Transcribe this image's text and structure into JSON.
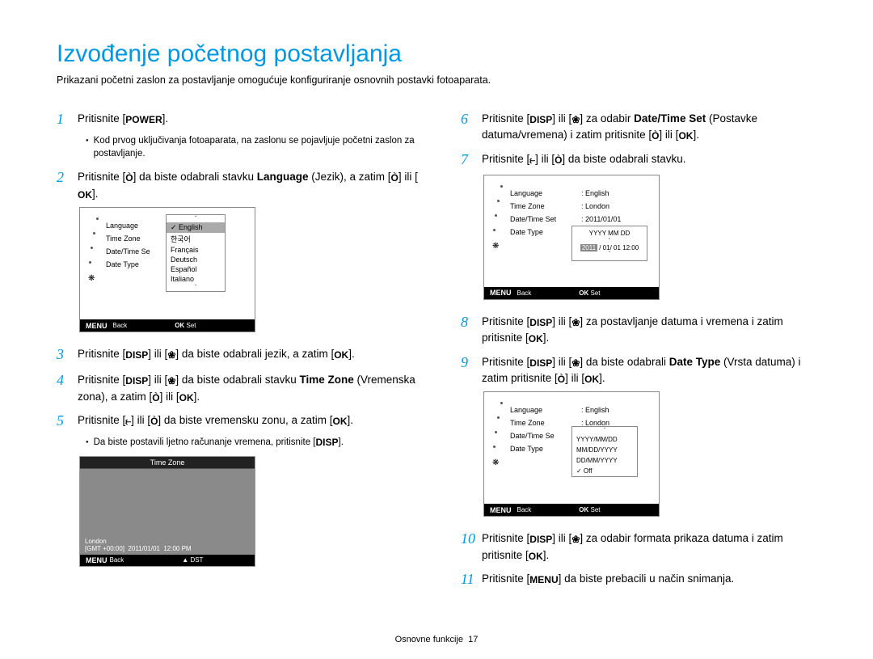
{
  "title": "Izvođenje početnog postavljanja",
  "subtitle": "Prikazani početni zaslon za postavljanje omogućuje konfiguriranje osnovnih postavki fotoaparata.",
  "icons": {
    "power": "POWER",
    "disp": "DISP",
    "ok": "OK",
    "menu": "MENU",
    "flower": "❀",
    "timer": "🕘",
    "flash": "⚡"
  },
  "steps_left": [
    {
      "n": "1",
      "t": [
        "Pritisnite [",
        "POWER",
        "]."
      ]
    },
    {
      "n": "2",
      "t": [
        "Pritisnite [",
        "timer",
        "] da biste odabrali stavku ",
        "Language",
        " (Jezik), a zatim [",
        "timer",
        "] ili [",
        "OK",
        "]."
      ]
    },
    {
      "n": "3",
      "t": [
        "Pritisnite [",
        "DISP",
        "] ili [",
        "flower",
        "] da biste odabrali jezik, a zatim [",
        "OK",
        "]."
      ]
    },
    {
      "n": "4",
      "t": [
        "Pritisnite [",
        "DISP",
        "] ili [",
        "flower",
        "] da biste odabrali stavku ",
        "Time Zone",
        " (Vremenska zona), a zatim [",
        "timer",
        "] ili [",
        "OK",
        "]."
      ]
    },
    {
      "n": "5",
      "t": [
        "Pritisnite [",
        "flash",
        "] ili [",
        "timer",
        "] da biste vremensku zonu, a zatim [",
        "OK",
        "]."
      ]
    }
  ],
  "bullet_left1": "Kod prvog uključivanja fotoaparata, na zaslonu se pojavljuje početni zaslon za postavljanje.",
  "bullet_left5": [
    "Da biste postavili ljetno računanje vremena, pritisnite [",
    "DISP",
    "]."
  ],
  "steps_right": [
    {
      "n": "6",
      "t": [
        "Pritisnite [",
        "DISP",
        "] ili [",
        "flower",
        "] za odabir ",
        "Date/Time Set",
        " (Postavke datuma/vremena) i zatim pritisnite [",
        "timer",
        "] ili [",
        "OK",
        "]."
      ]
    },
    {
      "n": "7",
      "t": [
        "Pritisnite [",
        "flash",
        "] ili [",
        "timer",
        "] da biste odabrali stavku."
      ]
    },
    {
      "n": "8",
      "t": [
        "Pritisnite [",
        "DISP",
        "] ili [",
        "flower",
        "] za postavljanje datuma i vremena i zatim pritisnite [",
        "OK",
        "]."
      ]
    },
    {
      "n": "9",
      "t": [
        "Pritisnite [",
        "DISP",
        "] ili [",
        "flower",
        "] da biste odabrali ",
        "Date Type",
        " (Vrsta datuma) i zatim pritisnite [",
        "timer",
        "] ili [",
        "OK",
        "]."
      ]
    },
    {
      "n": "10",
      "t": [
        "Pritisnite [",
        "DISP",
        "] ili [",
        "flower",
        "] za odabir formata prikaza datuma i zatim pritisnite [",
        "OK",
        "]."
      ]
    },
    {
      "n": "11",
      "t": [
        "Pritisnite [",
        "MENU",
        "] da biste prebacili u način snimanja."
      ]
    }
  ],
  "lcd1": {
    "menu": [
      "Language",
      "Time Zone",
      "Date/Time Se",
      "Date Type"
    ],
    "langs": [
      "English",
      "한국어",
      "Français",
      "Deutsch",
      "Español",
      "Italiano"
    ],
    "footer_back": "Back",
    "footer_set": "Set",
    "menu_label": "MENU",
    "ok_label": "OK"
  },
  "tz": {
    "title": "Time Zone",
    "city": "London",
    "gmt": "[GMT +00:00]",
    "date": "2011/01/01",
    "time": "12:00 PM",
    "back": "Back",
    "dst": "DST"
  },
  "lcd2": {
    "rows": [
      [
        "Language",
        "English"
      ],
      [
        "Time Zone",
        "London"
      ],
      [
        "Date/Time Set",
        "2011/01/01"
      ],
      [
        "Date Type",
        ""
      ]
    ],
    "fmt": "YYYY MM DD",
    "year": "2011",
    "rest": "/ 01/ 01   12:00",
    "footer_back": "Back",
    "footer_set": "Set"
  },
  "lcd3": {
    "rows": [
      [
        "Language",
        "English"
      ],
      [
        "Time Zone",
        "London"
      ],
      [
        "Date/Time Se",
        ""
      ],
      [
        "Date Type",
        ""
      ]
    ],
    "options": [
      "YYYY/MM/DD",
      "MM/DD/YYYY",
      "DD/MM/YYYY",
      "Off"
    ],
    "footer_back": "Back",
    "footer_set": "Set"
  },
  "footer": {
    "section": "Osnovne funkcije",
    "page": "17"
  },
  "colors": {
    "accent": "#0099e5"
  }
}
